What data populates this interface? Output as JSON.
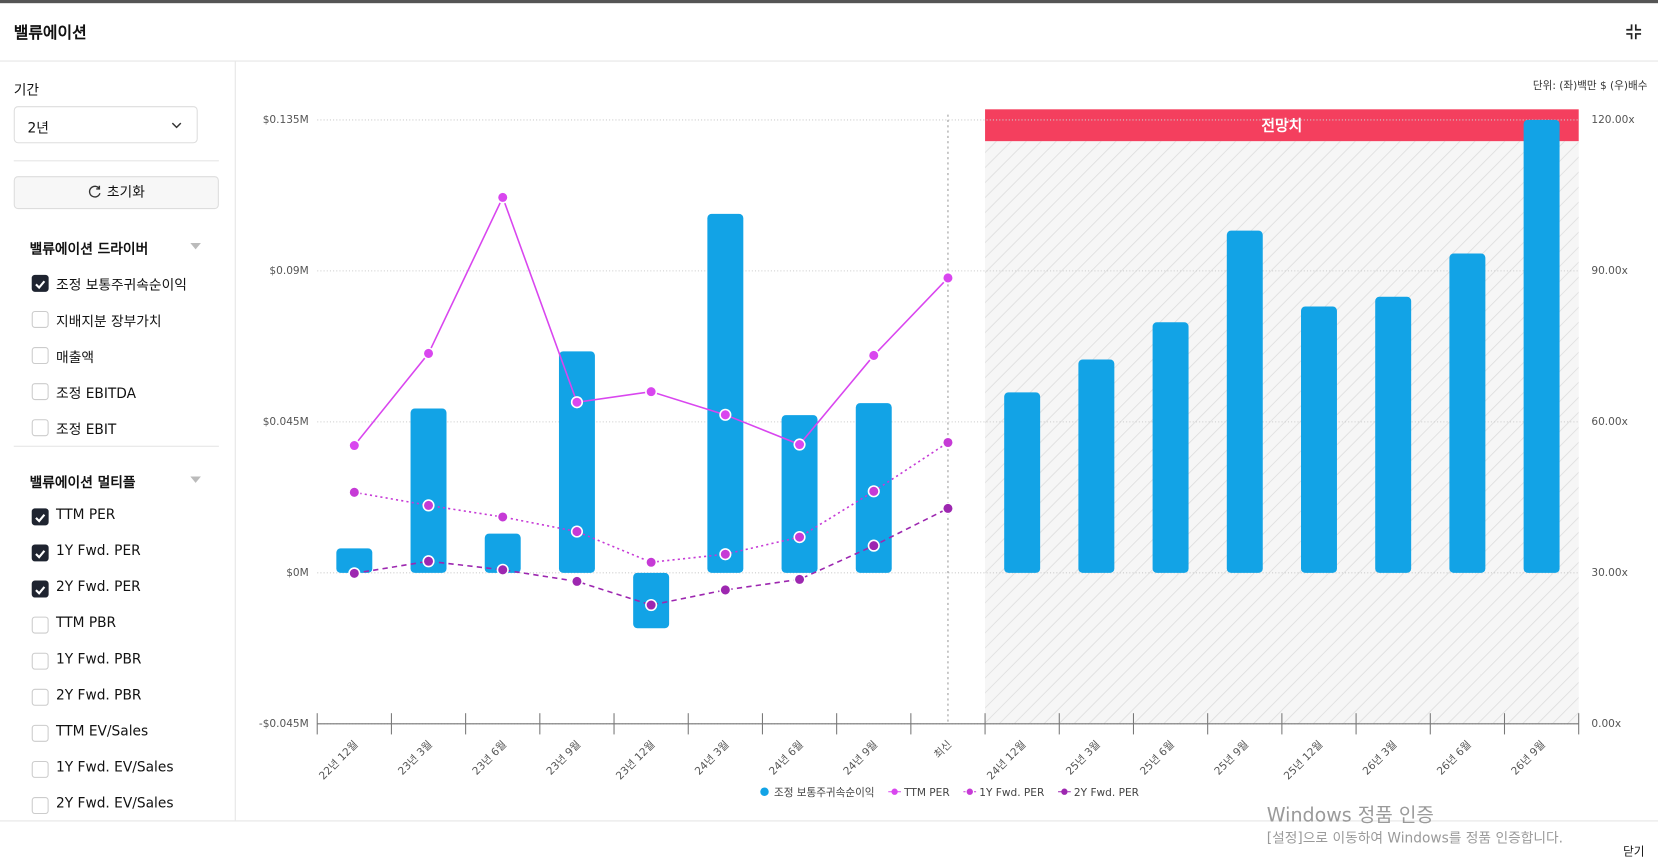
{
  "header": {
    "title": "밸류에이션"
  },
  "sidebar": {
    "period_label": "기간",
    "period_value": "2년",
    "reset": "초기화",
    "groups": [
      {
        "title": "밸류에이션 드라이버",
        "items": [
          {
            "label": "조정 보통주귀속순이익",
            "checked": true
          },
          {
            "label": "지배지분 장부가치",
            "checked": false
          },
          {
            "label": "매출액",
            "checked": false
          },
          {
            "label": "조정 EBITDA",
            "checked": false
          },
          {
            "label": "조정 EBIT",
            "checked": false
          }
        ]
      },
      {
        "title": "밸류에이션 멀티플",
        "items": [
          {
            "label": "TTM PER",
            "checked": true
          },
          {
            "label": "1Y Fwd. PER",
            "checked": true
          },
          {
            "label": "2Y Fwd. PER",
            "checked": true
          },
          {
            "label": "TTM PBR",
            "checked": false
          },
          {
            "label": "1Y Fwd. PBR",
            "checked": false
          },
          {
            "label": "2Y Fwd. PBR",
            "checked": false
          },
          {
            "label": "TTM EV/Sales",
            "checked": false
          },
          {
            "label": "1Y Fwd. EV/Sales",
            "checked": false
          },
          {
            "label": "2Y Fwd. EV/Sales",
            "checked": false
          }
        ]
      }
    ]
  },
  "chart_data": {
    "type": "bar_line",
    "unit_note": "단위: (좌)백만 $ (우)배수",
    "annotation": "전망치",
    "forecast_start": "24년 12월",
    "latest": "최신",
    "categories": [
      "22년 12월",
      "23년 3월",
      "23년 6월",
      "23년 9월",
      "23년 12월",
      "24년 3월",
      "24년 6월",
      "24년 9월",
      "최신",
      "24년 12월",
      "25년 3월",
      "25년 6월",
      "25년 9월",
      "25년 12월",
      "26년 3월",
      "26년 6월",
      "26년 9월"
    ],
    "series": [
      {
        "name": "조정 보통주귀속순이익",
        "type": "bar",
        "color": "#12a3e6",
        "values": [
          0.0073,
          0.049,
          0.0117,
          0.066,
          -0.0165,
          0.107,
          0.047,
          0.0506,
          null,
          0.0538,
          0.0636,
          0.0747,
          0.102,
          0.0794,
          0.0823,
          0.0952,
          0.135
        ]
      },
      {
        "name": "TTM PER",
        "type": "line",
        "axis": "y2",
        "style": "solid",
        "color": "#d946ef",
        "values": [
          55.3,
          73.6,
          104.6,
          63.9,
          66.0,
          61.4,
          55.5,
          73.2,
          88.6,
          null,
          null,
          null,
          null,
          null,
          null,
          null,
          null
        ]
      },
      {
        "name": "1Y Fwd. PER",
        "type": "line",
        "axis": "y2",
        "style": "dotted",
        "color": "#c63ad6",
        "values": [
          46.0,
          43.4,
          41.1,
          38.2,
          32.1,
          33.7,
          37.1,
          46.2,
          55.9,
          null,
          null,
          null,
          null,
          null,
          null,
          null,
          null
        ]
      },
      {
        "name": "2Y Fwd. PER",
        "type": "line",
        "axis": "y2",
        "style": "dashed",
        "color": "#9d27b0",
        "values": [
          29.9,
          32.3,
          30.6,
          28.3,
          23.6,
          26.6,
          28.7,
          35.4,
          42.8,
          null,
          null,
          null,
          null,
          null,
          null,
          null,
          null
        ]
      }
    ],
    "ylim": [
      -0.045,
      0.135
    ],
    "yticks": [
      {
        "value": -0.045,
        "label": "-$0.045M"
      },
      {
        "value": 0,
        "label": "$0M"
      },
      {
        "value": 0.045,
        "label": "$0.045M"
      },
      {
        "value": 0.09,
        "label": "$0.09M"
      },
      {
        "value": 0.135,
        "label": "$0.135M"
      }
    ],
    "y2lim": [
      0,
      120
    ],
    "y2ticks": [
      {
        "value": 0,
        "label": "0.00x"
      },
      {
        "value": 30,
        "label": "30.00x"
      },
      {
        "value": 60,
        "label": "60.00x"
      },
      {
        "value": 90,
        "label": "90.00x"
      },
      {
        "value": 120,
        "label": "120.00x"
      }
    ],
    "grid": true
  },
  "footer": {
    "close": "닫기"
  },
  "watermark": {
    "title": "Windows 정품 인증",
    "text": "[설정]으로 이동하여 Windows를 정품 인증합니다."
  }
}
